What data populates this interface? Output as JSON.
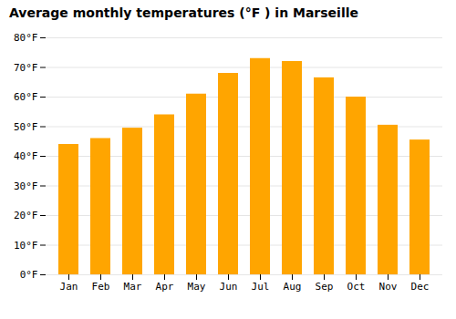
{
  "chart_data": {
    "type": "bar",
    "title": "Average monthly temperatures (°F ) in Marseille",
    "categories": [
      "Jan",
      "Feb",
      "Mar",
      "Apr",
      "May",
      "Jun",
      "Jul",
      "Aug",
      "Sep",
      "Oct",
      "Nov",
      "Dec"
    ],
    "values": [
      44,
      46,
      49.5,
      54,
      61,
      68,
      73,
      72,
      66.5,
      60,
      50.5,
      45.5
    ],
    "color": "#FFA500",
    "ylim": [
      0,
      80
    ],
    "yticks": [
      {
        "value": 0,
        "label": "0°F"
      },
      {
        "value": 10,
        "label": "10°F"
      },
      {
        "value": 20,
        "label": "20°F"
      },
      {
        "value": 30,
        "label": "30°F"
      },
      {
        "value": 40,
        "label": "40°F"
      },
      {
        "value": 50,
        "label": "50°F"
      },
      {
        "value": 60,
        "label": "60°F"
      },
      {
        "value": 70,
        "label": "70°F"
      },
      {
        "value": 80,
        "label": "80°F"
      }
    ],
    "grid": true
  }
}
